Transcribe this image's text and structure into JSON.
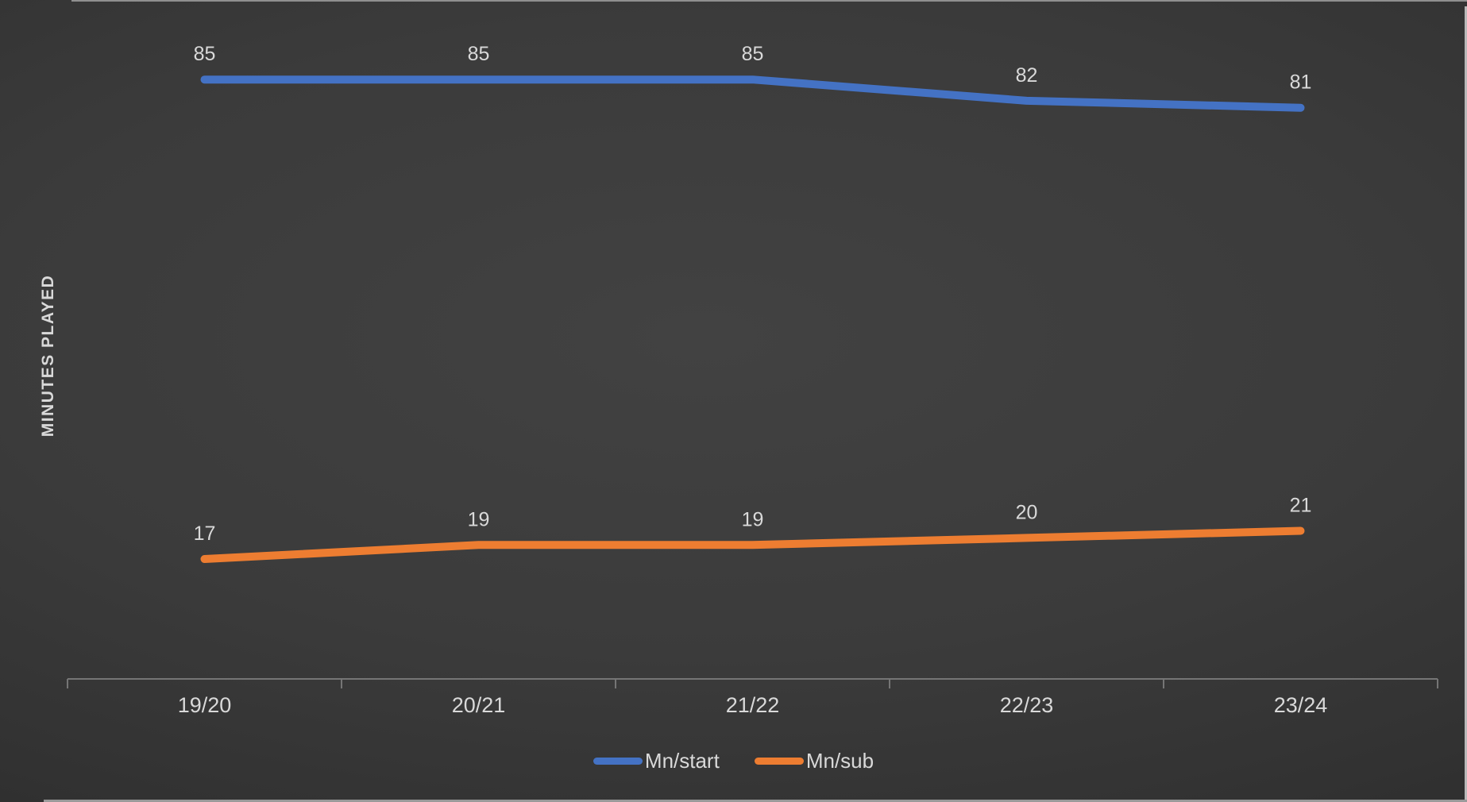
{
  "chart_data": {
    "type": "line",
    "title": "",
    "ylabel": "MINUTES PLAYED",
    "xlabel": "",
    "categories": [
      "19/20",
      "20/21",
      "21/22",
      "22/23",
      "23/24"
    ],
    "series": [
      {
        "name": "Mn/start",
        "color": "#4472C4",
        "values": [
          85,
          85,
          85,
          82,
          81
        ]
      },
      {
        "name": "Mn/sub",
        "color": "#ED7D31",
        "values": [
          17,
          19,
          19,
          20,
          21
        ]
      }
    ],
    "data_labels": true,
    "value_axis": {
      "min": 0,
      "visible_ticks": false,
      "gridlines": false
    },
    "legend_position": "bottom",
    "colors": {
      "text": "#d9d9d9",
      "axis": "#757575",
      "background_inner": "#424242",
      "background_outer": "#1e1e1e"
    }
  }
}
